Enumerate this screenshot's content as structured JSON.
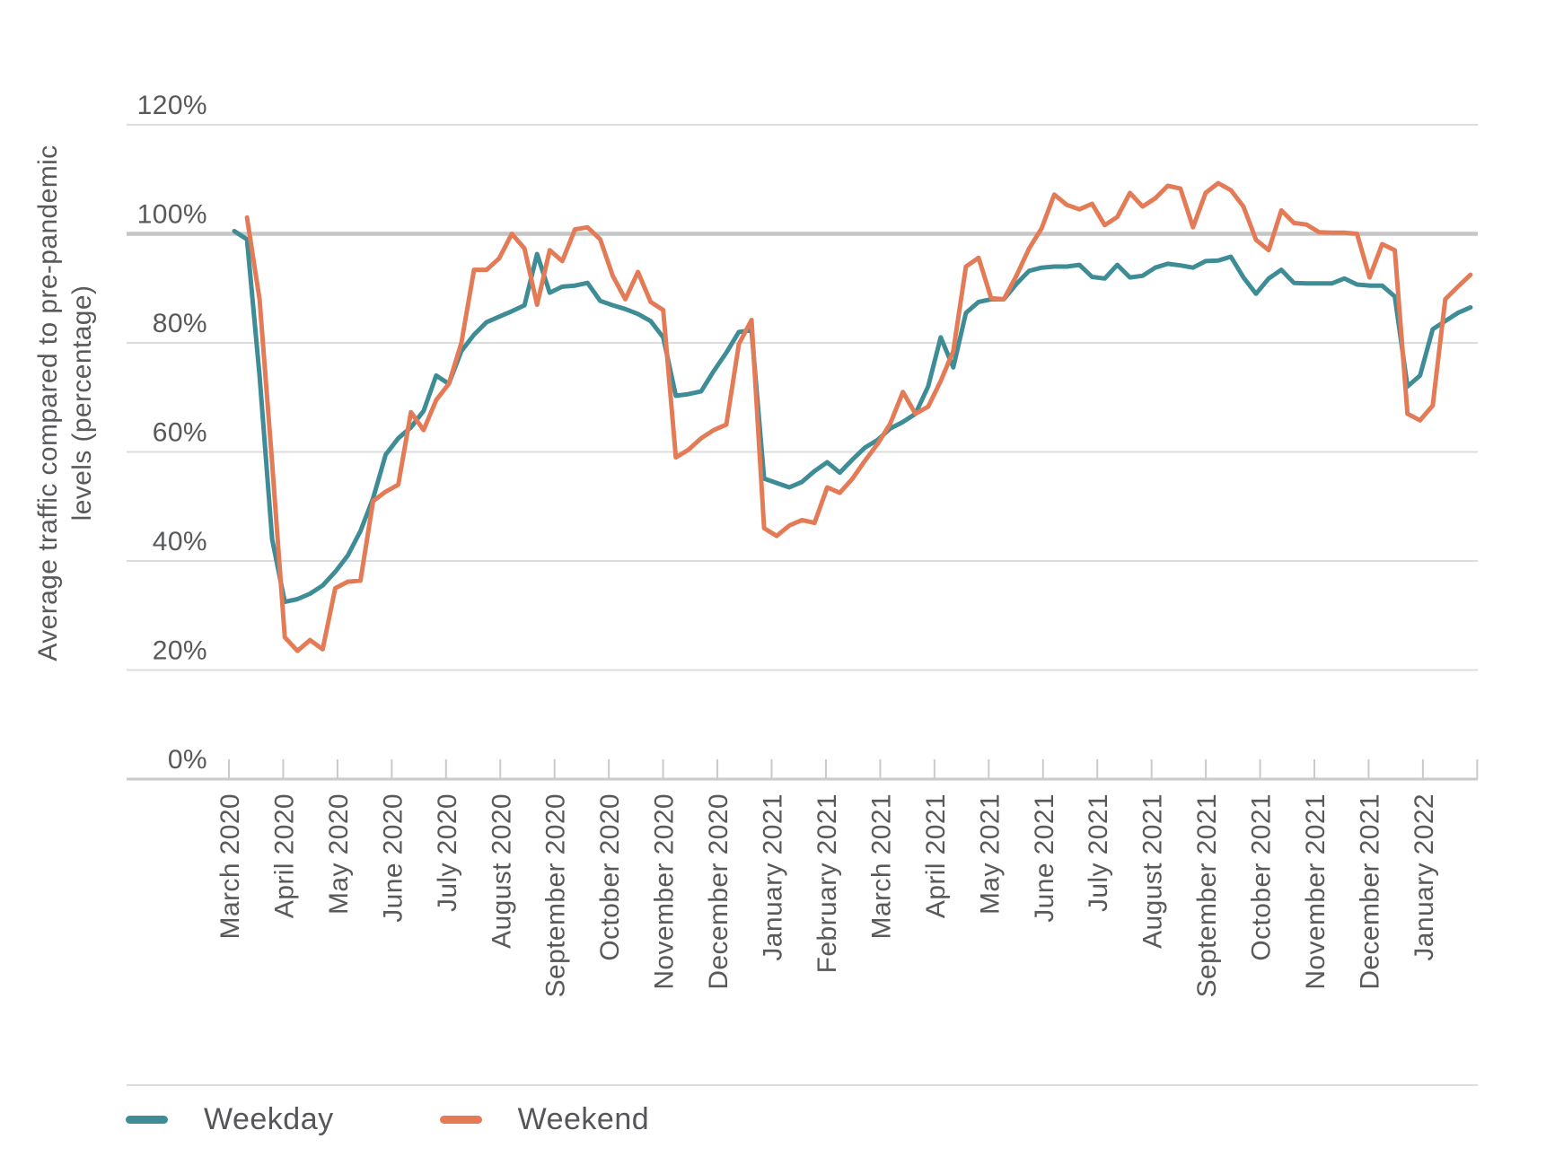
{
  "page": {
    "background": "#ffffff"
  },
  "chart_data": {
    "type": "line",
    "title": "",
    "ylabel": "Average traffic compared to pre-pandemic levels (percentage)",
    "ylabel_lines": [
      "Average traffic compared to pre-pandemic",
      "levels (percentage)"
    ],
    "ylim": [
      0,
      120
    ],
    "y_ticks": [
      {
        "value": 0,
        "label": "0%"
      },
      {
        "value": 20,
        "label": "20%"
      },
      {
        "value": 40,
        "label": "40%"
      },
      {
        "value": 60,
        "label": "60%"
      },
      {
        "value": 80,
        "label": "80%"
      },
      {
        "value": 100,
        "label": "100%"
      },
      {
        "value": 120,
        "label": "120%"
      }
    ],
    "emphasized_gridline_value": 100,
    "grid": "horizontal-only",
    "x_unit": "week",
    "x_tick_labels": [
      "March 2020",
      "April 2020",
      "May 2020",
      "June 2020",
      "July 2020",
      "August 2020",
      "September 2020",
      "October 2020",
      "November 2020",
      "December 2020",
      "January 2021",
      "February 2021",
      "March 2021",
      "April 2021",
      "May 2021",
      "June 2021",
      "July 2021",
      "August 2021",
      "September 2021",
      "October 2021",
      "November 2021",
      "December 2021",
      "January 2022"
    ],
    "legend_position": "bottom-left",
    "colors": {
      "weekday": "#3e8c96",
      "weekend": "#e47b57",
      "grid": "#dbdcdd",
      "grid_emphasis": "#c5c6c8",
      "axis": "#c9cacc",
      "text": "#58595b"
    },
    "series": [
      {
        "name": "Weekday",
        "color": "#3e8c96",
        "values": [
          100.5,
          99,
          74,
          44,
          32.5,
          33,
          34,
          35.5,
          38,
          41,
          45.5,
          51.5,
          59.5,
          62.5,
          64.5,
          67.5,
          74,
          72.5,
          78.5,
          81.5,
          83.8,
          84.8,
          85.8,
          86.9,
          96.3,
          89.2,
          90.3,
          90.5,
          91,
          87.7,
          86.9,
          86.2,
          85.3,
          84,
          81,
          70.3,
          70.6,
          71.1,
          74.8,
          78.2,
          82,
          82.3,
          55.1,
          54.3,
          53.5,
          54.5,
          56.5,
          58.1,
          56.2,
          58.6,
          60.8,
          62.2,
          64.3,
          65.5,
          67,
          72,
          81,
          75.5,
          85.5,
          87.5,
          88,
          88,
          90.8,
          93.2,
          93.8,
          94,
          94,
          94.3,
          92.1,
          91.8,
          94.3,
          92,
          92.3,
          93.8,
          94.5,
          94.2,
          93.8,
          95,
          95.1,
          95.8,
          92,
          89,
          91.8,
          93.4,
          91,
          90.9,
          90.9,
          90.9,
          91.8,
          90.7,
          90.5,
          90.5,
          88.5,
          72,
          74,
          82.5,
          84,
          85.5,
          86.5
        ]
      },
      {
        "name": "Weekend",
        "color": "#e47b57",
        "values": [
          null,
          103,
          88,
          58,
          26,
          23.5,
          25.5,
          23.8,
          35,
          36.2,
          36.4,
          51,
          52.7,
          54,
          67.3,
          64,
          69.5,
          72.5,
          80,
          93.4,
          93.4,
          95.5,
          100,
          97.3,
          87,
          97,
          95,
          100.8,
          101.2,
          99,
          92.3,
          88,
          93,
          87.5,
          86,
          59,
          60.4,
          62.5,
          64,
          65,
          79.8,
          84.2,
          46,
          44.6,
          46.5,
          47.5,
          47,
          53.5,
          52.5,
          55.1,
          58.4,
          61.5,
          65.2,
          71,
          67,
          68.3,
          73,
          78.5,
          94,
          95.6,
          88.2,
          88,
          92.3,
          97.3,
          101,
          107.2,
          105.3,
          104.5,
          105.5,
          101.6,
          103.1,
          107.5,
          105,
          106.5,
          108.8,
          108.3,
          101.2,
          107.5,
          109.3,
          108,
          105,
          98.9,
          97,
          104.3,
          102,
          101.7,
          100.3,
          100.2,
          100.2,
          100,
          92,
          98.1,
          97,
          67,
          65.8,
          68.5,
          88,
          90.3,
          92.5
        ]
      }
    ]
  }
}
